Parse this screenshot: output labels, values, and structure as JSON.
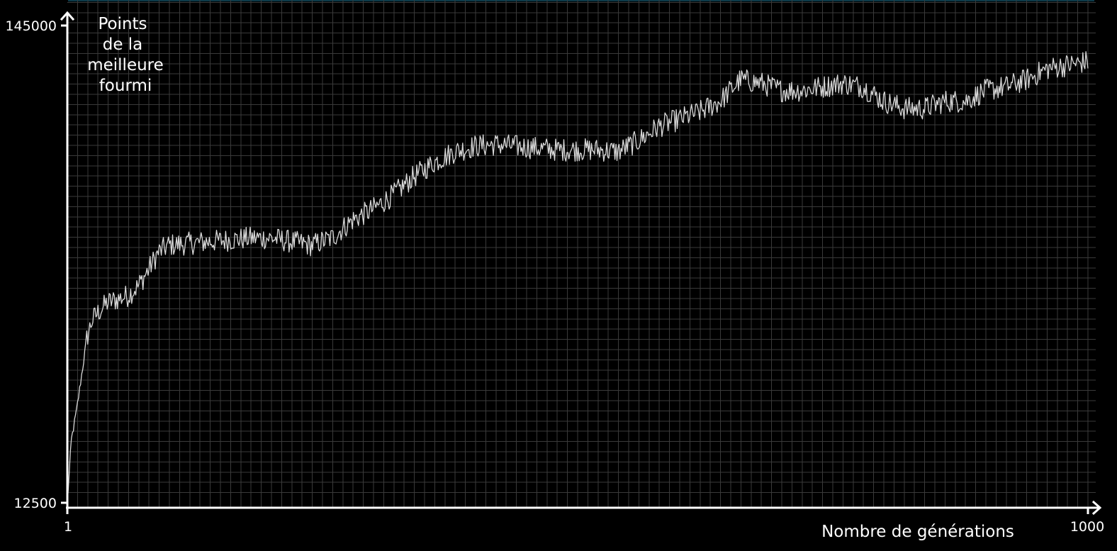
{
  "chart_data": {
    "type": "line",
    "title": "",
    "xlabel": "Nombre de générations",
    "ylabel": "Points de la meilleure fourmi",
    "ylabel_lines": [
      "Points",
      "de la",
      "meilleure",
      "fourmi"
    ],
    "xlim": [
      1,
      1000
    ],
    "ylim": [
      12500,
      145000
    ],
    "x_tick_labels": [
      "1",
      "1000"
    ],
    "y_tick_labels": [
      "12500",
      "145000"
    ],
    "grid": true,
    "legend": "none",
    "colors": {
      "background": "#000000",
      "grid": "#3a3a3a",
      "axis": "#ffffff",
      "series": "#d9d9d9",
      "top_line": "#0c3b4a"
    },
    "series": [
      {
        "points": [
          [
            1,
            12500
          ],
          [
            5,
            30000
          ],
          [
            10,
            38000
          ],
          [
            15,
            48000
          ],
          [
            20,
            58000
          ],
          [
            25,
            63000
          ],
          [
            30,
            65000
          ],
          [
            40,
            68000
          ],
          [
            50,
            69000
          ],
          [
            60,
            70000
          ],
          [
            70,
            72500
          ],
          [
            80,
            77000
          ],
          [
            90,
            82000
          ],
          [
            100,
            84000
          ],
          [
            120,
            84500
          ],
          [
            140,
            85000
          ],
          [
            160,
            85500
          ],
          [
            180,
            86000
          ],
          [
            200,
            86000
          ],
          [
            220,
            85000
          ],
          [
            240,
            84000
          ],
          [
            260,
            86000
          ],
          [
            280,
            91000
          ],
          [
            300,
            94000
          ],
          [
            320,
            98000
          ],
          [
            340,
            103000
          ],
          [
            360,
            107000
          ],
          [
            380,
            110000
          ],
          [
            400,
            111500
          ],
          [
            420,
            112000
          ],
          [
            440,
            111500
          ],
          [
            460,
            111000
          ],
          [
            480,
            110500
          ],
          [
            500,
            110500
          ],
          [
            520,
            110500
          ],
          [
            540,
            110000
          ],
          [
            560,
            113000
          ],
          [
            580,
            117000
          ],
          [
            600,
            119000
          ],
          [
            620,
            121000
          ],
          [
            640,
            124000
          ],
          [
            660,
            130000
          ],
          [
            680,
            129000
          ],
          [
            700,
            127000
          ],
          [
            720,
            127000
          ],
          [
            740,
            128000
          ],
          [
            760,
            129000
          ],
          [
            780,
            128000
          ],
          [
            800,
            124000
          ],
          [
            820,
            122000
          ],
          [
            840,
            122000
          ],
          [
            860,
            124000
          ],
          [
            880,
            124000
          ],
          [
            900,
            127000
          ],
          [
            920,
            128000
          ],
          [
            940,
            130000
          ],
          [
            960,
            133000
          ],
          [
            980,
            134000
          ],
          [
            1000,
            135000
          ]
        ]
      }
    ]
  }
}
